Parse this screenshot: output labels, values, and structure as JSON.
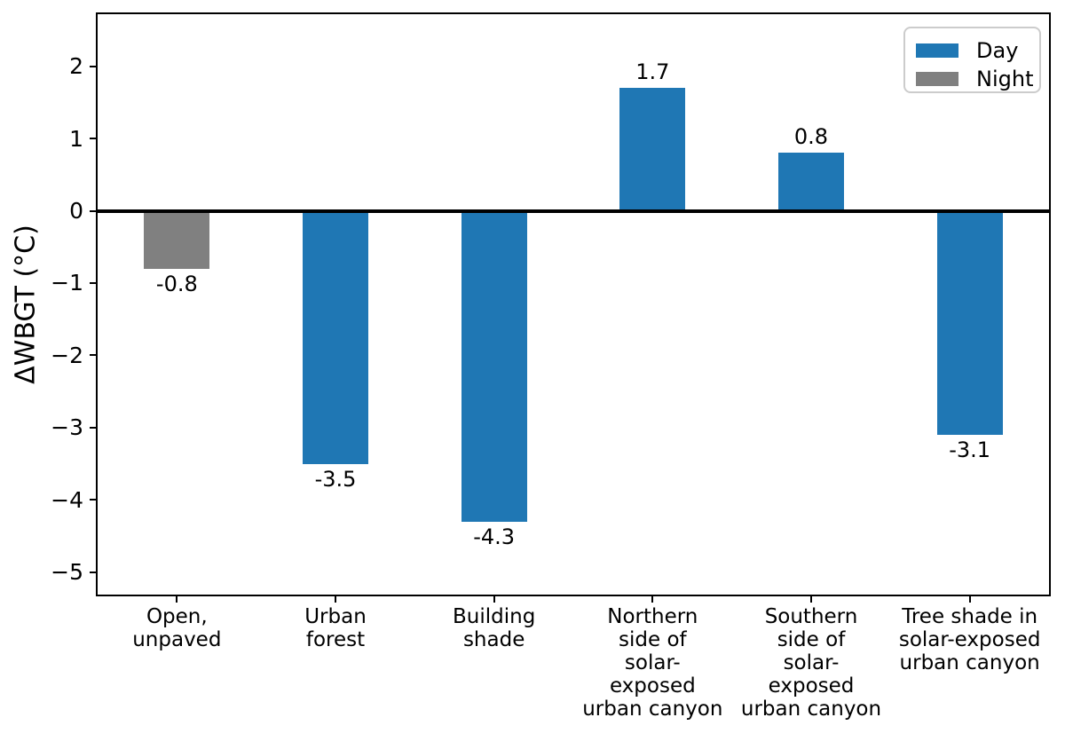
{
  "figure": {
    "background": "#ffffff"
  },
  "colors": {
    "day": "#1f77b4",
    "night": "#808080",
    "axis": "#000000",
    "legend_border": "#cccccc"
  },
  "chart_data": {
    "type": "bar",
    "title": "",
    "xlabel": "",
    "ylabel": "ΔWBGT (°C)",
    "ylim": [
      -5.31,
      2.72
    ],
    "grid": false,
    "zero_line": true,
    "legend_position": "upper right",
    "legend": {
      "entries": [
        {
          "label": "Day",
          "color": "#1f77b4"
        },
        {
          "label": "Night",
          "color": "#808080"
        }
      ]
    },
    "yticks": [
      {
        "value": 2,
        "label": "2"
      },
      {
        "value": 1,
        "label": "1"
      },
      {
        "value": 0,
        "label": "0"
      },
      {
        "value": -1,
        "label": "−1"
      },
      {
        "value": -2,
        "label": "−2"
      },
      {
        "value": -3,
        "label": "−3"
      },
      {
        "value": -4,
        "label": "−4"
      },
      {
        "value": -5,
        "label": "−5"
      }
    ],
    "bars": [
      {
        "id": "open-unpaved",
        "category": "Open, unpaved",
        "label_lines": [
          "Open,",
          "unpaved"
        ],
        "value": -0.8,
        "value_label": "-0.8",
        "series": "Night",
        "color": "#808080"
      },
      {
        "id": "urban-forest",
        "category": "Urban forest",
        "label_lines": [
          "Urban",
          "forest"
        ],
        "value": -3.5,
        "value_label": "-3.5",
        "series": "Day",
        "color": "#1f77b4"
      },
      {
        "id": "building-shade",
        "category": "Building shade",
        "label_lines": [
          "Building",
          "shade"
        ],
        "value": -4.3,
        "value_label": "-4.3",
        "series": "Day",
        "color": "#1f77b4"
      },
      {
        "id": "northern-side-solar-exposed-urban-canyon",
        "category": "Northern side of solar-exposed urban canyon",
        "label_lines": [
          "Northern",
          "side of",
          "solar-",
          "exposed",
          "urban canyon"
        ],
        "value": 1.7,
        "value_label": "1.7",
        "series": "Day",
        "color": "#1f77b4"
      },
      {
        "id": "southern-side-solar-exposed-urban-canyon",
        "category": "Southern side of solar-exposed urban canyon",
        "label_lines": [
          "Southern",
          "side of",
          "solar-",
          "exposed",
          "urban canyon"
        ],
        "value": 0.8,
        "value_label": "0.8",
        "series": "Day",
        "color": "#1f77b4"
      },
      {
        "id": "tree-shade-solar-exposed-urban-canyon",
        "category": "Tree shade in solar-exposed urban canyon",
        "label_lines": [
          "Tree shade in",
          "solar-exposed",
          "urban canyon"
        ],
        "value": -3.1,
        "value_label": "-3.1",
        "series": "Day",
        "color": "#1f77b4"
      }
    ]
  }
}
